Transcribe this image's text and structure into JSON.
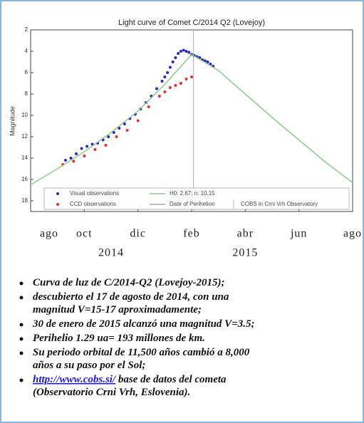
{
  "chart_data": {
    "type": "scatter",
    "title": "Light curve of Comet C/2014 Q2 (Lovejoy)",
    "y_label": "Magnitude",
    "y_inverted": true,
    "ylim": [
      2,
      19
    ],
    "yticks": [
      2,
      4,
      6,
      8,
      10,
      12,
      14,
      16,
      18
    ],
    "xlim": [
      0,
      12
    ],
    "xticks": [
      {
        "value": 0,
        "label": "ago"
      },
      {
        "value": 2,
        "label": "oct"
      },
      {
        "value": 4,
        "label": "dic"
      },
      {
        "value": 6,
        "label": "feb"
      },
      {
        "value": 8,
        "label": "abr"
      },
      {
        "value": 10,
        "label": "jun"
      },
      {
        "value": 12,
        "label": "ago"
      }
    ],
    "years": [
      {
        "value": 3,
        "label": "2014"
      },
      {
        "value": 8,
        "label": "2015"
      }
    ],
    "series": [
      {
        "name": "Visual observations",
        "color": "#2a2ab8",
        "style": "points",
        "x": [
          1.3,
          1.5,
          1.7,
          1.9,
          2.1,
          2.3,
          2.5,
          2.7,
          2.9,
          3.1,
          3.3,
          3.5,
          3.7,
          3.9,
          4.1,
          4.3,
          4.5,
          4.7,
          4.9,
          5.0,
          5.1,
          5.2,
          5.3,
          5.4,
          5.5,
          5.6,
          5.7,
          5.8,
          5.9,
          6.0,
          6.1,
          6.2,
          6.3,
          6.4,
          6.5,
          6.6,
          6.7,
          6.8
        ],
        "values": [
          14.2,
          14.0,
          13.6,
          13.1,
          12.9,
          12.7,
          12.6,
          12.3,
          12.0,
          11.6,
          11.2,
          10.8,
          10.3,
          9.9,
          9.4,
          8.8,
          8.2,
          7.5,
          6.8,
          6.4,
          6.0,
          5.5,
          5.0,
          4.6,
          4.2,
          4.0,
          3.9,
          4.0,
          4.1,
          4.3,
          4.4,
          4.5,
          4.6,
          4.8,
          4.9,
          5.0,
          5.2,
          5.4
        ]
      },
      {
        "name": "CCD observations",
        "color": "#e03030",
        "style": "points",
        "x": [
          1.2,
          1.6,
          2.0,
          2.4,
          2.8,
          3.2,
          3.6,
          4.0,
          4.4,
          4.8,
          5.0,
          5.2,
          5.4,
          5.6,
          5.8,
          6.0
        ],
        "values": [
          14.6,
          14.3,
          13.8,
          13.2,
          12.8,
          12.0,
          11.4,
          10.5,
          9.2,
          8.2,
          7.8,
          7.4,
          7.2,
          7.0,
          6.6,
          6.4
        ]
      },
      {
        "name": "H0: 2.67; n: 10.15",
        "color": "#8fc98f",
        "style": "line",
        "x": [
          0,
          1,
          2,
          3,
          4,
          5,
          6,
          7,
          8,
          9,
          10,
          11,
          12
        ],
        "values": [
          16.5,
          15.0,
          13.4,
          11.6,
          9.6,
          7.1,
          4.3,
          5.8,
          8.0,
          10.2,
          12.3,
          14.4,
          16.3
        ]
      }
    ],
    "perihelion": {
      "name": "Date of Perihelion",
      "x": 6.07,
      "color": "#aaaaaa"
    },
    "annotation": "COBS in Crni Vrh Observatory"
  },
  "bullets": [
    {
      "lines": [
        "Curva de luz de C/2014-Q2 (Lovejoy-2015);"
      ]
    },
    {
      "lines": [
        "descubierto el 17 de agosto de 2014, con una",
        "magnitud V=15-17 aproximadamente;"
      ]
    },
    {
      "lines": [
        "30 de enero de 2015 alcanzó una magnitud V=3.5;"
      ]
    },
    {
      "lines": [
        "Perihelio  1.29 ua=  193 millones de km."
      ]
    },
    {
      "lines": [
        "Su periodo orbital de 11,500 años cambió a 8,000",
        "años a su paso por el Sol;"
      ]
    },
    {
      "link": "http://www.cobs.si/",
      "lines": [
        " base de datos del cometa",
        "(Observatorio Crni Vrh, Eslovenia)."
      ]
    }
  ]
}
